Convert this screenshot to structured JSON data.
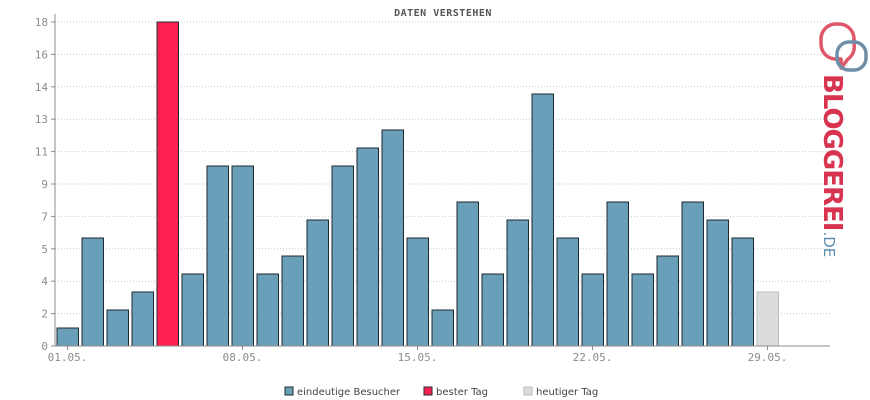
{
  "chart_data": {
    "type": "bar",
    "title": "DATEN VERSTEHEN",
    "xlabel": "",
    "ylabel": "",
    "ylim": [
      0,
      18
    ],
    "y_ticks": [
      "0",
      "2",
      "4",
      "5",
      "7",
      "9",
      "11",
      "13",
      "14",
      "16",
      "18"
    ],
    "y_tick_values": [
      0,
      1.8,
      3.6,
      5.4,
      7.2,
      9,
      10.8,
      12.6,
      14.4,
      16.2,
      18
    ],
    "x_labels": [
      "01.05.",
      "08.05.",
      "15.05.",
      "22.05.",
      "29.05."
    ],
    "x_label_day_index": [
      0,
      7,
      14,
      21,
      28
    ],
    "days": 31,
    "values": [
      1,
      6,
      2,
      3,
      18,
      4,
      10,
      10,
      4,
      5,
      7,
      10,
      11,
      12,
      6,
      2,
      8,
      4,
      7,
      14,
      6,
      4,
      8,
      4,
      5,
      8,
      7,
      6,
      3,
      0,
      0
    ],
    "best_day_index": 4,
    "today_index": 28,
    "grid": true,
    "legend_position": "bottom-center",
    "colors": {
      "visitors": "#6a9fb9",
      "best": "#ff2052",
      "today": "#dcdcdc",
      "bar_border": "#1e2a30",
      "today_border": "#bdbdbd",
      "grid": "#c8c8c8",
      "axis": "#8c8c8c"
    },
    "legend": [
      {
        "key": "visitors",
        "label": "eindeutige Besucher"
      },
      {
        "key": "best",
        "label": "bester Tag"
      },
      {
        "key": "today",
        "label": "heutiger Tag"
      }
    ]
  },
  "logo": {
    "word": "BLOGGEREI",
    "suffix": ".DE",
    "icon": "bloggerei-speech-bubbles-icon"
  }
}
